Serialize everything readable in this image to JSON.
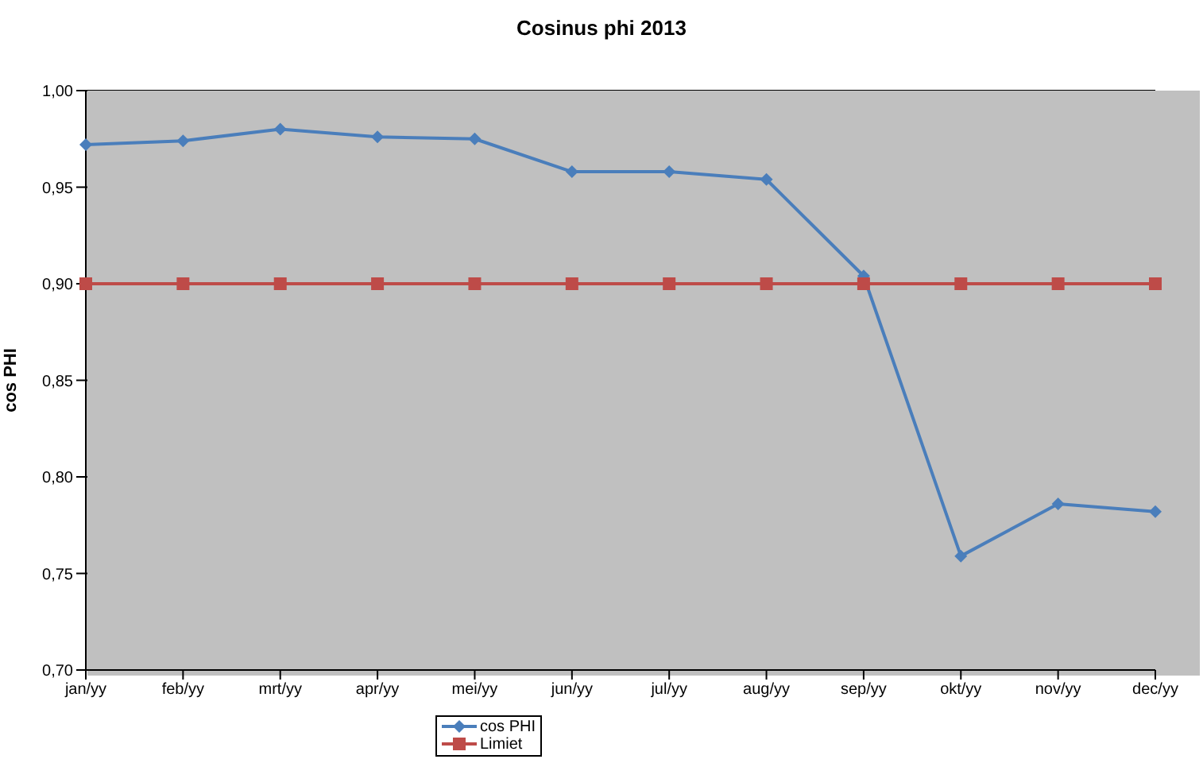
{
  "chart_data": {
    "type": "line",
    "title": "Cosinus phi 2013",
    "ylabel": "cos PHI",
    "categories": [
      "jan/yy",
      "feb/yy",
      "mrt/yy",
      "apr/yy",
      "mei/yy",
      "jun/yy",
      "jul/yy",
      "aug/yy",
      "sep/yy",
      "okt/yy",
      "nov/yy",
      "dec/yy"
    ],
    "series": [
      {
        "name": "cos PHI",
        "color": "#4a7ebb",
        "marker": "diamond",
        "values": [
          0.972,
          0.974,
          0.98,
          0.976,
          0.975,
          0.958,
          0.958,
          0.954,
          0.904,
          0.759,
          0.786,
          0.782
        ]
      },
      {
        "name": "Limiet",
        "color": "#be4b48",
        "marker": "square",
        "values": [
          0.9,
          0.9,
          0.9,
          0.9,
          0.9,
          0.9,
          0.9,
          0.9,
          0.9,
          0.9,
          0.9,
          0.9
        ]
      }
    ],
    "ylim": [
      0.7,
      1.0
    ],
    "yticks": [
      {
        "value": 0.7,
        "label": "0,70"
      },
      {
        "value": 0.75,
        "label": "0,75"
      },
      {
        "value": 0.8,
        "label": "0,80"
      },
      {
        "value": 0.85,
        "label": "0,85"
      },
      {
        "value": 0.9,
        "label": "0,90"
      },
      {
        "value": 0.95,
        "label": "0,95"
      },
      {
        "value": 1.0,
        "label": "1,00"
      }
    ],
    "grid": "y",
    "legend": "bottom"
  }
}
